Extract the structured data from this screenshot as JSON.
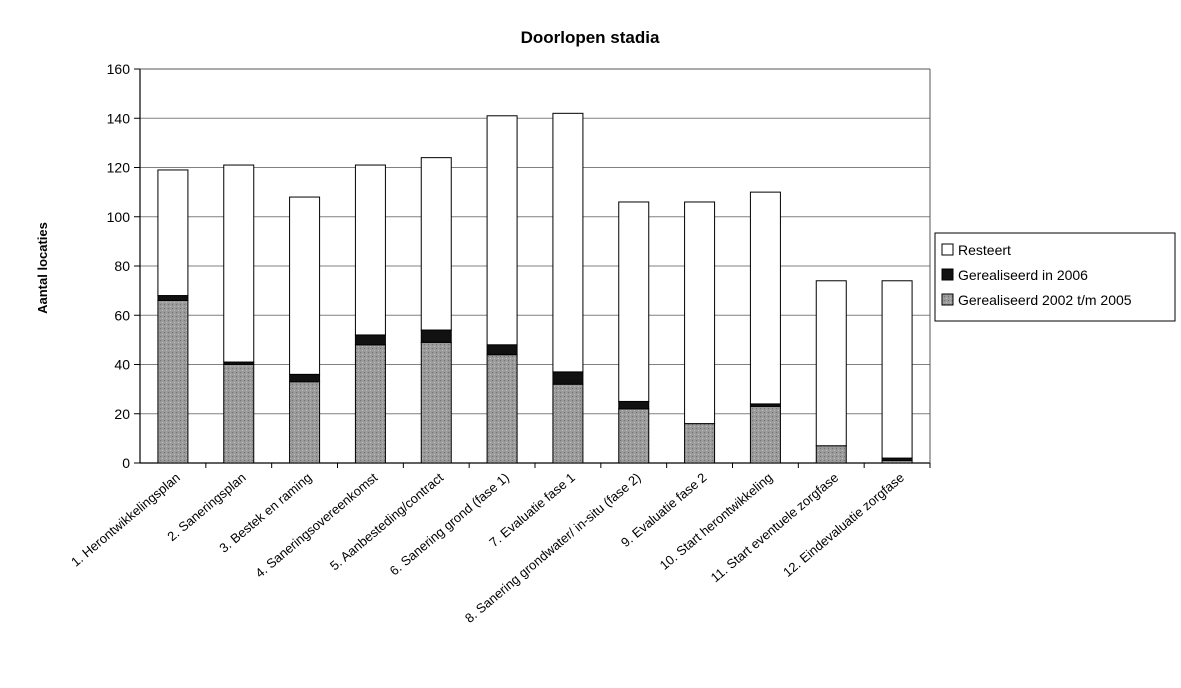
{
  "chart_data": {
    "type": "bar",
    "stacked": true,
    "title": "Doorlopen stadia",
    "xlabel": "",
    "ylabel": "Aantal locaties",
    "ylim": [
      0,
      160
    ],
    "yticks": [
      0,
      20,
      40,
      60,
      80,
      100,
      120,
      140,
      160
    ],
    "grid": true,
    "legend_position": "right",
    "categories": [
      "1. Herontwikkelingsplan",
      "2. Saneringsplan",
      "3. Bestek en raming",
      "4. Saneringsovereenkomst",
      "5. Aanbesteding/contract",
      "6. Sanering grond (fase 1)",
      "7. Evaluatie fase 1",
      "8. Sanering grondwater/ in-situ (fase 2)",
      "9. Evaluatie fase 2",
      "10. Start herontwikkeling",
      "11. Start eventuele zorgfase",
      "12. Eindevaluatie zorgfase"
    ],
    "series": [
      {
        "name": "Gerealiseerd 2002 t/m 2005",
        "color": "#9a9a9a",
        "values": [
          66,
          40,
          33,
          48,
          49,
          44,
          32,
          22,
          16,
          23,
          7,
          1
        ]
      },
      {
        "name": "Gerealiseerd in 2006",
        "color": "#111111",
        "values": [
          2,
          1,
          3,
          4,
          5,
          4,
          5,
          3,
          0,
          1,
          0,
          1
        ]
      },
      {
        "name": "Resteert",
        "color": "#ffffff",
        "values": [
          51,
          80,
          72,
          69,
          70,
          93,
          105,
          81,
          90,
          86,
          67,
          72
        ]
      }
    ],
    "legend_order": [
      "Resteert",
      "Gerealiseerd in 2006",
      "Gerealiseerd 2002 t/m 2005"
    ]
  }
}
